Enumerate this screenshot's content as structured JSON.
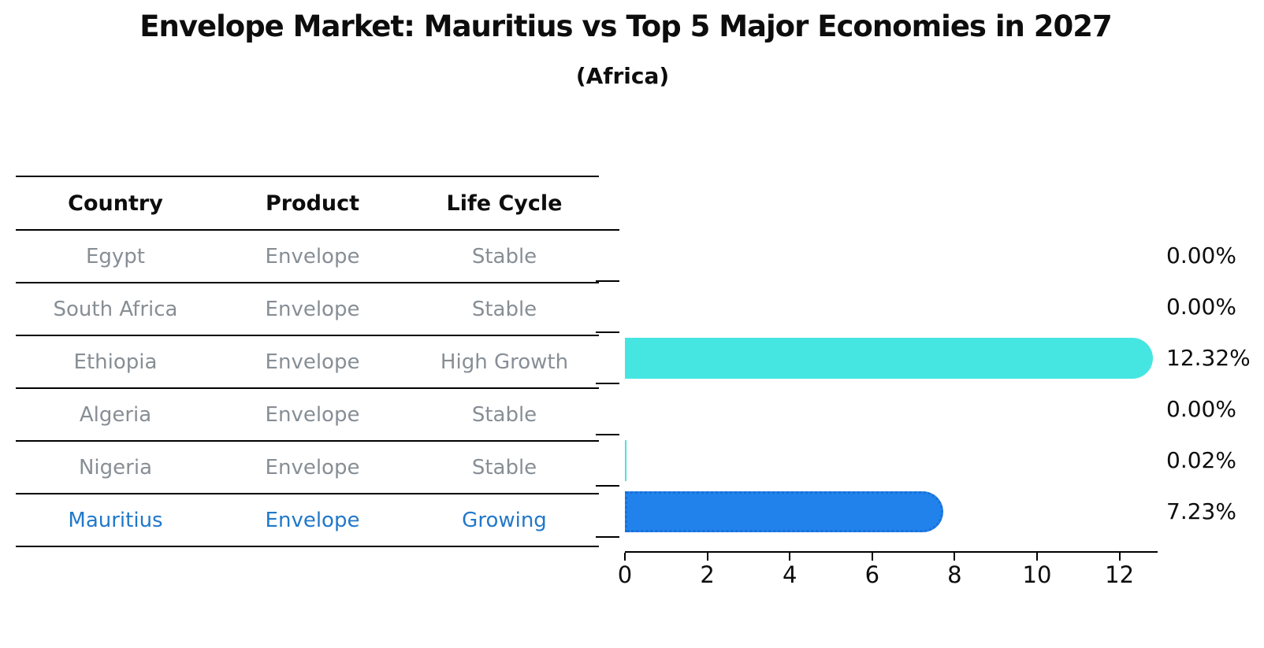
{
  "figure": {
    "title": "Envelope Market: Mauritius vs Top 5 Major Economies in 2027",
    "subtitle": "(Africa)"
  },
  "table": {
    "headers": [
      "Country",
      "Product",
      "Life Cycle"
    ],
    "rows": [
      {
        "country": "Egypt",
        "product": "Envelope",
        "life_cycle": "Stable"
      },
      {
        "country": "South Africa",
        "product": "Envelope",
        "life_cycle": "Stable"
      },
      {
        "country": "Ethiopia",
        "product": "Envelope",
        "life_cycle": "High Growth"
      },
      {
        "country": "Algeria",
        "product": "Envelope",
        "life_cycle": "Stable"
      },
      {
        "country": "Nigeria",
        "product": "Envelope",
        "life_cycle": "Stable"
      },
      {
        "country": "Mauritius",
        "product": "Envelope",
        "life_cycle": "Growing"
      }
    ],
    "highlight_row": "Mauritius"
  },
  "chart_data": {
    "type": "bar",
    "orientation": "horizontal",
    "title": "Envelope Market: Mauritius vs Top 5 Major Economies in 2027",
    "subtitle": "(Africa)",
    "categories": [
      "Egypt",
      "South Africa",
      "Ethiopia",
      "Algeria",
      "Nigeria",
      "Mauritius"
    ],
    "values": [
      0.0,
      0.0,
      12.32,
      0.0,
      0.02,
      7.23
    ],
    "value_labels": [
      "0.00%",
      "0.00%",
      "12.32%",
      "0.00%",
      "0.02%",
      "7.23%"
    ],
    "xlabel": "",
    "ylabel": "",
    "xlim": [
      0,
      13
    ],
    "xticks": [
      0,
      2,
      4,
      6,
      8,
      10,
      12
    ],
    "grid": false,
    "legend": "none",
    "highlight_index": 5,
    "colors": {
      "bar_default": "#45e6e1",
      "bar_highlight_fill": "#2182eb",
      "bar_highlight_edge": "#1a6fd8",
      "highlight_text": "#2178c9",
      "muted_text": "#878e95",
      "heading_text": "#0d0d0d",
      "axis": "#000000"
    }
  }
}
